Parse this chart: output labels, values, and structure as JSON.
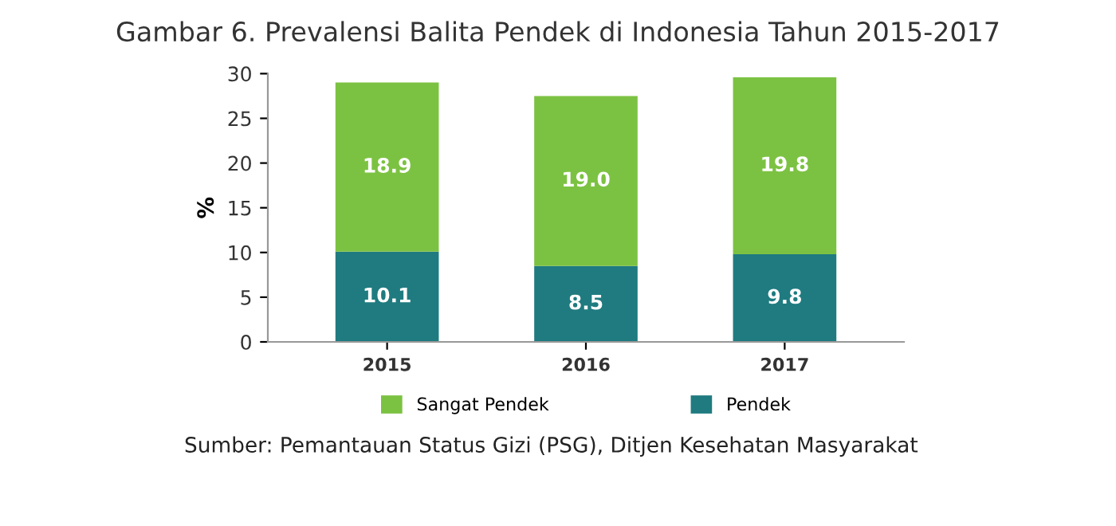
{
  "chart_data": {
    "type": "bar",
    "title": "Gambar 6. Prevalensi Balita Pendek di Indonesia Tahun 2015-2017",
    "ylabel": "%",
    "categories": [
      "2015",
      "2016",
      "2017"
    ],
    "series": [
      {
        "name": "Pendek",
        "color": "#1f7b80",
        "values": [
          10.1,
          8.5,
          9.8
        ],
        "value_labels": [
          "10.1",
          "8.5",
          "9.8"
        ]
      },
      {
        "name": "Sangat Pendek",
        "color": "#7cc242",
        "values": [
          18.9,
          19.0,
          19.8
        ],
        "value_labels": [
          "18.9",
          "19.0",
          "19.8"
        ]
      }
    ],
    "stacked": true,
    "ylim": [
      0,
      30
    ],
    "yticks": [
      0,
      5,
      10,
      15,
      20,
      25,
      30
    ],
    "grid": false,
    "legend": "bottom",
    "annotations": [
      "Sumber: Pemantauan Status Gizi (PSG), Ditjen Kesehatan Masyarakat"
    ]
  }
}
